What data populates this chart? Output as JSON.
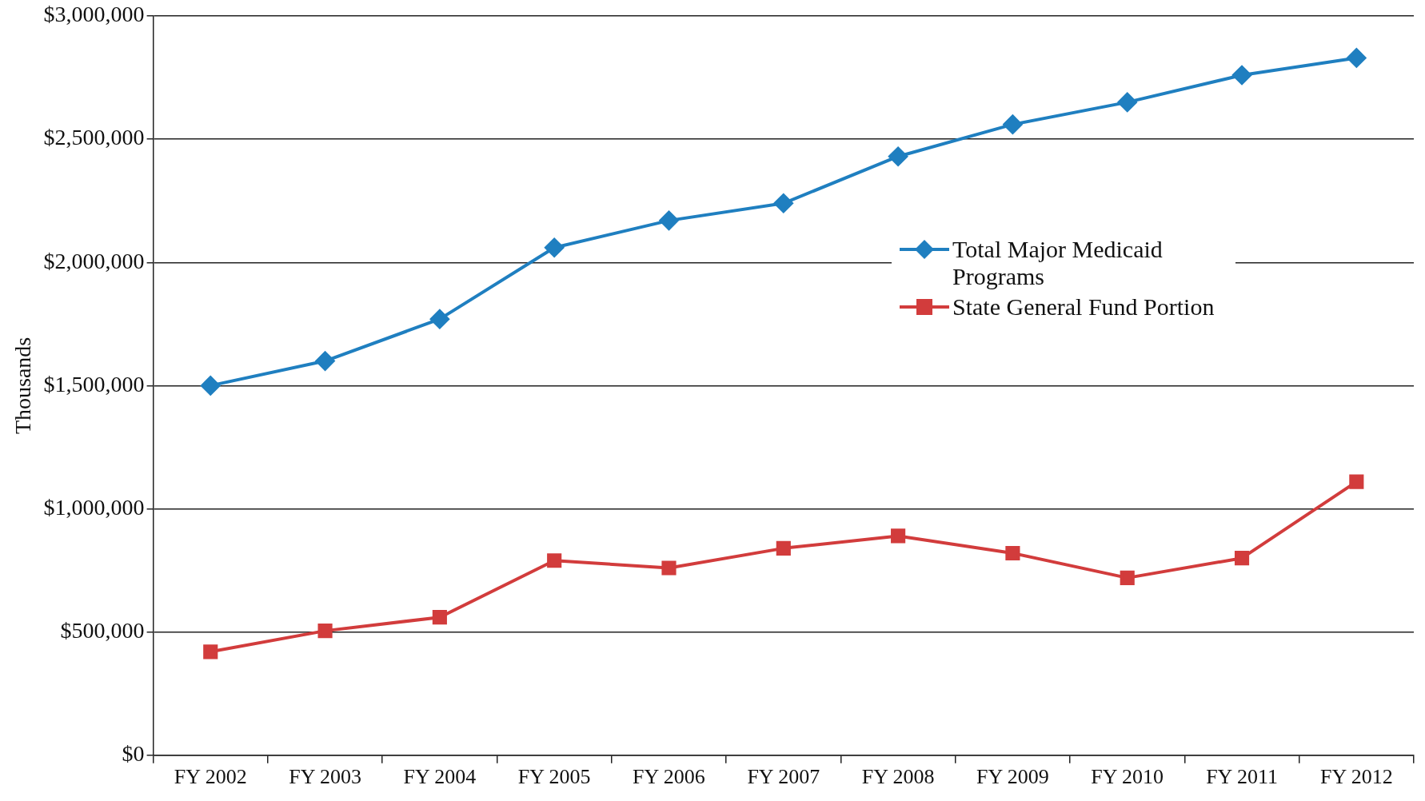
{
  "chart_data": {
    "type": "line",
    "ylabel": "Thousands",
    "categories": [
      "FY 2002",
      "FY 2003",
      "FY 2004",
      "FY 2005",
      "FY 2006",
      "FY 2007",
      "FY 2008",
      "FY 2009",
      "FY 2010",
      "FY 2011",
      "FY 2012"
    ],
    "series": [
      {
        "name": "Total Major Medicaid Programs",
        "color": "#1f7fc0",
        "marker": "diamond",
        "values": [
          1500000,
          1600000,
          1770000,
          2060000,
          2170000,
          2240000,
          2430000,
          2560000,
          2650000,
          2760000,
          2830000
        ]
      },
      {
        "name": "State General Fund Portion",
        "color": "#d23c3c",
        "marker": "square",
        "values": [
          420000,
          505000,
          560000,
          790000,
          760000,
          840000,
          890000,
          820000,
          720000,
          800000,
          1110000
        ]
      }
    ],
    "ylim": [
      0,
      3000000
    ],
    "yticks": [
      {
        "value": 0,
        "label": "$0"
      },
      {
        "value": 500000,
        "label": "$500,000"
      },
      {
        "value": 1000000,
        "label": "$1,000,000"
      },
      {
        "value": 1500000,
        "label": "$1,500,000"
      },
      {
        "value": 2000000,
        "label": "$2,000,000"
      },
      {
        "value": 2500000,
        "label": "$2,500,000"
      },
      {
        "value": 3000000,
        "label": "$3,000,000"
      }
    ],
    "grid": "y",
    "legend": "right",
    "line_style": "solid"
  }
}
